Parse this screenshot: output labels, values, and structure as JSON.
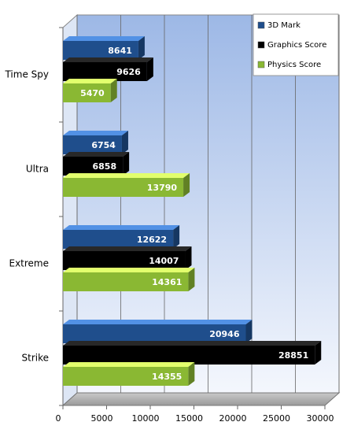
{
  "chart_data": {
    "type": "bar",
    "orientation": "horizontal",
    "categories": [
      "Time Spy",
      "Ultra",
      "Extreme",
      "Strike"
    ],
    "series": [
      {
        "name": "3D Mark",
        "color": "#1f4e8c",
        "values": [
          8641,
          6754,
          12622,
          20946
        ]
      },
      {
        "name": "Graphics Score",
        "color": "#000000",
        "values": [
          9626,
          6858,
          14007,
          28851
        ]
      },
      {
        "name": "Physics Score",
        "color": "#8ab833",
        "values": [
          5470,
          13790,
          14361,
          14355
        ]
      }
    ],
    "xlim": [
      0,
      30000
    ],
    "xticks": [
      0,
      5000,
      10000,
      15000,
      20000,
      25000,
      30000
    ],
    "grid": true,
    "legend": "top-right"
  }
}
